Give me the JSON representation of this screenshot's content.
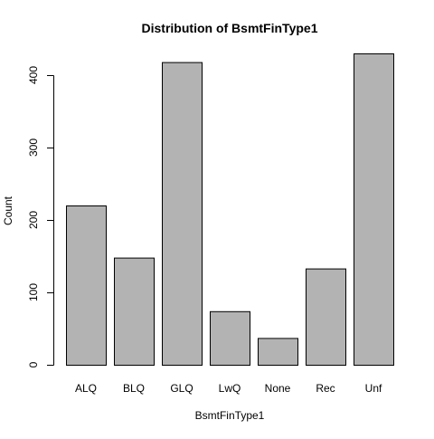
{
  "chart_data": {
    "type": "bar",
    "title": "Distribution of BsmtFinType1",
    "xlabel": "BsmtFinType1",
    "ylabel": "Count",
    "categories": [
      "ALQ",
      "BLQ",
      "GLQ",
      "LwQ",
      "None",
      "Rec",
      "Unf"
    ],
    "values": [
      220,
      148,
      418,
      74,
      37,
      133,
      430
    ],
    "ylim": [
      0,
      430
    ],
    "yticks": [
      0,
      100,
      200,
      300,
      400
    ],
    "grid": false,
    "bar_color": "#b3b3b3",
    "edge_color": "#000000"
  }
}
